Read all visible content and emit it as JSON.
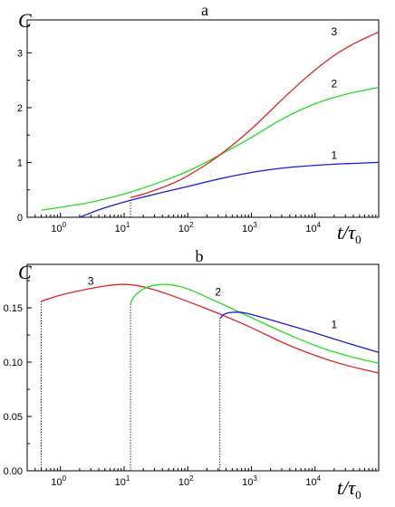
{
  "chart_data": [
    {
      "title": "a",
      "type": "line",
      "xscale": "log10",
      "xlim": [
        0.3,
        100000
      ],
      "ylim": [
        0,
        3.6
      ],
      "xlabel_main": "t/τ",
      "xlabel_sub": "0",
      "ylabel": "C",
      "xticks": [
        {
          "v": 1,
          "e": "0"
        },
        {
          "v": 10,
          "e": "1"
        },
        {
          "v": 100,
          "e": "2"
        },
        {
          "v": 1000,
          "e": "3"
        },
        {
          "v": 10000,
          "e": "4"
        }
      ],
      "yticks": [
        {
          "v": 0,
          "label": "0"
        },
        {
          "v": 1,
          "label": "1"
        },
        {
          "v": 2,
          "label": "2"
        },
        {
          "v": 3,
          "label": "3"
        }
      ],
      "vlines": [
        {
          "x": 12.6,
          "y0": 0,
          "y1": 0.35
        }
      ],
      "series": [
        {
          "name": "1",
          "color": "#1a1ad0",
          "points": [
            [
              2,
              0
            ],
            [
              4,
              0.14
            ],
            [
              10,
              0.28
            ],
            [
              30,
              0.42
            ],
            [
              100,
              0.56
            ],
            [
              300,
              0.7
            ],
            [
              1000,
              0.82
            ],
            [
              3000,
              0.9
            ],
            [
              10000,
              0.95
            ],
            [
              30000,
              0.98
            ],
            [
              100000,
              1.0
            ]
          ]
        },
        {
          "name": "2",
          "color": "#22dd22",
          "points": [
            [
              0.5,
              0.13
            ],
            [
              1,
              0.18
            ],
            [
              3,
              0.27
            ],
            [
              10,
              0.42
            ],
            [
              30,
              0.6
            ],
            [
              100,
              0.83
            ],
            [
              300,
              1.12
            ],
            [
              1000,
              1.45
            ],
            [
              3000,
              1.8
            ],
            [
              10000,
              2.08
            ],
            [
              30000,
              2.25
            ],
            [
              100000,
              2.37
            ]
          ]
        },
        {
          "name": "3",
          "color": "#dd2222",
          "points": [
            [
              12.6,
              0.36
            ],
            [
              20,
              0.42
            ],
            [
              50,
              0.58
            ],
            [
              100,
              0.75
            ],
            [
              300,
              1.1
            ],
            [
              1000,
              1.6
            ],
            [
              3000,
              2.15
            ],
            [
              10000,
              2.7
            ],
            [
              30000,
              3.1
            ],
            [
              100000,
              3.38
            ]
          ]
        }
      ]
    },
    {
      "title": "b",
      "type": "line",
      "xscale": "log10",
      "xlim": [
        0.3,
        100000
      ],
      "ylim": [
        0,
        0.19
      ],
      "xlabel_main": "t/τ",
      "xlabel_sub": "0",
      "ylabel": "C",
      "xticks": [
        {
          "v": 1,
          "e": "0"
        },
        {
          "v": 10,
          "e": "1"
        },
        {
          "v": 100,
          "e": "2"
        },
        {
          "v": 1000,
          "e": "3"
        },
        {
          "v": 10000,
          "e": "4"
        }
      ],
      "yticks": [
        {
          "v": 0,
          "label": "0.00"
        },
        {
          "v": 0.05,
          "label": "0.05"
        },
        {
          "v": 0.1,
          "label": "0.10"
        },
        {
          "v": 0.15,
          "label": "0.15"
        }
      ],
      "vlines": [
        {
          "x": 0.5,
          "y0": 0,
          "y1": 0.156
        },
        {
          "x": 12.6,
          "y0": 0,
          "y1": 0.154
        },
        {
          "x": 320,
          "y0": 0,
          "y1": 0.14
        }
      ],
      "series": [
        {
          "name": "3",
          "color": "#dd2222",
          "points": [
            [
              0.5,
              0.156
            ],
            [
              1,
              0.162
            ],
            [
              3,
              0.168
            ],
            [
              8,
              0.172
            ],
            [
              15,
              0.171
            ],
            [
              30,
              0.167
            ],
            [
              100,
              0.156
            ],
            [
              300,
              0.145
            ],
            [
              1000,
              0.132
            ],
            [
              3000,
              0.118
            ],
            [
              10000,
              0.106
            ],
            [
              30000,
              0.097
            ],
            [
              100000,
              0.09
            ]
          ]
        },
        {
          "name": "2",
          "color": "#22dd22",
          "points": [
            [
              12.6,
              0.154
            ],
            [
              14,
              0.16
            ],
            [
              18,
              0.166
            ],
            [
              25,
              0.17
            ],
            [
              40,
              0.172
            ],
            [
              60,
              0.171
            ],
            [
              100,
              0.168
            ],
            [
              300,
              0.155
            ],
            [
              1000,
              0.141
            ],
            [
              3000,
              0.128
            ],
            [
              10000,
              0.115
            ],
            [
              30000,
              0.106
            ],
            [
              100000,
              0.099
            ]
          ]
        },
        {
          "name": "1",
          "color": "#1a1ad0",
          "points": [
            [
              320,
              0.14
            ],
            [
              350,
              0.143
            ],
            [
              400,
              0.145
            ],
            [
              500,
              0.146
            ],
            [
              700,
              0.146
            ],
            [
              1000,
              0.144
            ],
            [
              3000,
              0.136
            ],
            [
              10000,
              0.127
            ],
            [
              30000,
              0.118
            ],
            [
              100000,
              0.109
            ]
          ]
        }
      ]
    }
  ]
}
